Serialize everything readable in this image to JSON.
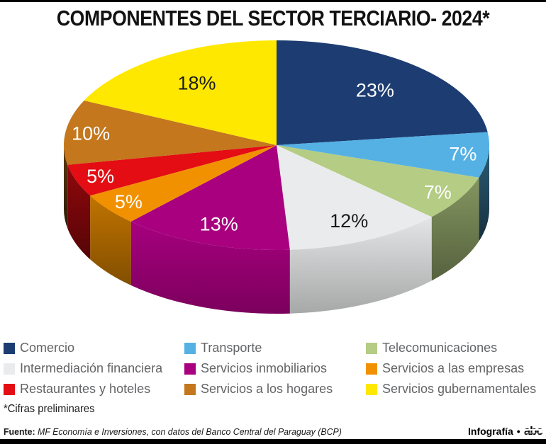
{
  "chart_data": {
    "type": "pie",
    "style": "3d",
    "title": "COMPONENTES DEL SECTOR TERCIARIO- 2024*",
    "unit": "%",
    "start_angle_deg": -90,
    "direction": "clockwise",
    "legend_position": "bottom",
    "legend_columns": 3,
    "categories": [
      "Comercio",
      "Transporte",
      "Telecomunicaciones",
      "Intermediación financiera",
      "Servicios inmobiliarios",
      "Servicios a las empresas",
      "Restaurantes y hoteles",
      "Servicios a los hogares",
      "Servicios gubernamentales"
    ],
    "values": [
      23,
      7,
      7,
      12,
      13,
      5,
      5,
      10,
      18
    ],
    "colors": [
      "#1d3d72",
      "#55b1e4",
      "#b4cc83",
      "#eaebec",
      "#a8007f",
      "#f29100",
      "#e30d13",
      "#c4771c",
      "#ffe800"
    ],
    "label_colors": [
      "#ffffff",
      "#ffffff",
      "#ffffff",
      "#1a1a1a",
      "#ffffff",
      "#ffffff",
      "#ffffff",
      "#ffffff",
      "#1a1a1a"
    ]
  },
  "footer": {
    "footnote": "*Cifras preliminares",
    "source_label": "Fuente:",
    "source_text": "MF Economía e Inversiones, con datos del Banco Central del Paraguay (BCP)",
    "credit_label": "Infografía",
    "credit_bullet": "•",
    "credit_logo": "abc"
  }
}
